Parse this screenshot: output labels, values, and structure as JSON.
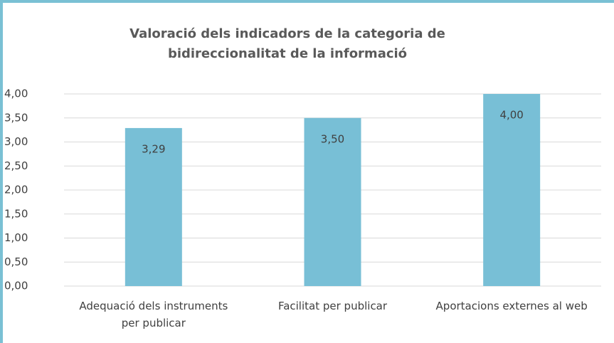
{
  "chart_data": {
    "type": "bar",
    "title": "Valoració dels indicadors de la categoria de bidireccionalitat de la informació",
    "categories": [
      "Adequació dels instruments per publicar",
      "Facilitat per publicar",
      "Aportacions externes al web"
    ],
    "values": [
      3.29,
      3.5,
      4.0
    ],
    "value_labels": [
      "3,29",
      "3,50",
      "4,00"
    ],
    "color": "#78bfd6",
    "ylim": [
      0,
      4
    ],
    "yticks": [
      {
        "value": 0,
        "label": "0,00"
      },
      {
        "value": 0.5,
        "label": "0,50"
      },
      {
        "value": 1,
        "label": "1,00"
      },
      {
        "value": 1.5,
        "label": "1,50"
      },
      {
        "value": 2,
        "label": "2,00"
      },
      {
        "value": 2.5,
        "label": "2,50"
      },
      {
        "value": 3,
        "label": "3,00"
      },
      {
        "value": 3.5,
        "label": "3,50"
      },
      {
        "value": 4,
        "label": "4,00"
      }
    ],
    "grid": true
  }
}
